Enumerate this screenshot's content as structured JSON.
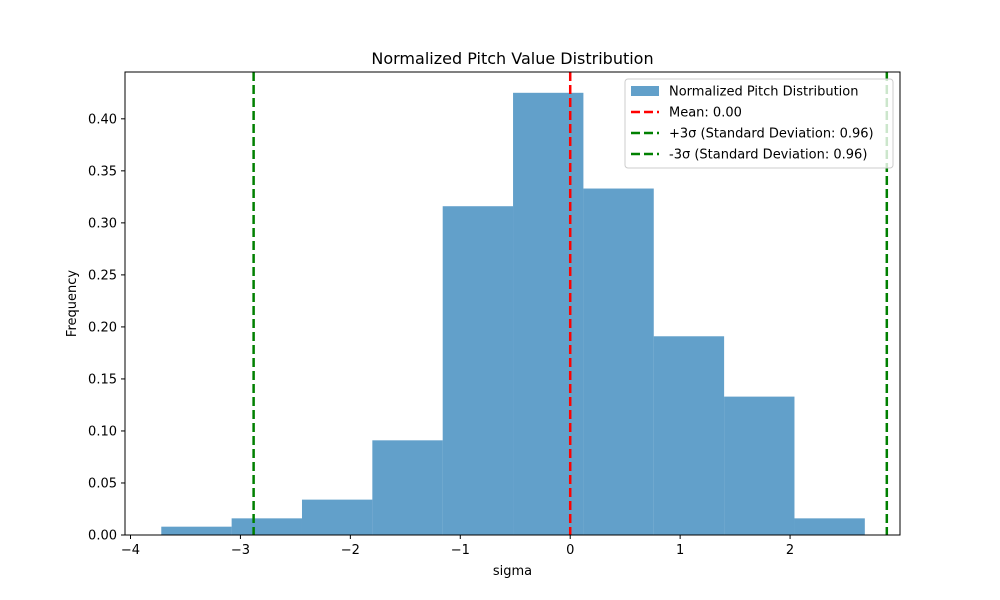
{
  "chart_data": {
    "type": "bar",
    "title": "Normalized Pitch Value Distribution",
    "xlabel": "sigma",
    "ylabel": "Frequency",
    "xlim": [
      -4.05,
      3.0
    ],
    "ylim": [
      0.0,
      0.445
    ],
    "xticks": [
      -4,
      -3,
      -2,
      -1,
      0,
      1,
      2
    ],
    "xtick_labels": [
      "−4",
      "−3",
      "−2",
      "−1",
      "0",
      "1",
      "2"
    ],
    "yticks": [
      0.0,
      0.05,
      0.1,
      0.15,
      0.2,
      0.25,
      0.3,
      0.35,
      0.4
    ],
    "ytick_labels": [
      "0.00",
      "0.05",
      "0.10",
      "0.15",
      "0.20",
      "0.25",
      "0.30",
      "0.35",
      "0.40"
    ],
    "bins": [
      {
        "start": -3.72,
        "end": -3.08,
        "value": 0.008
      },
      {
        "start": -3.08,
        "end": -2.44,
        "value": 0.016
      },
      {
        "start": -2.44,
        "end": -1.8,
        "value": 0.034
      },
      {
        "start": -1.8,
        "end": -1.16,
        "value": 0.091
      },
      {
        "start": -1.16,
        "end": -0.52,
        "value": 0.316
      },
      {
        "start": -0.52,
        "end": 0.12,
        "value": 0.425
      },
      {
        "start": 0.12,
        "end": 0.76,
        "value": 0.333
      },
      {
        "start": 0.76,
        "end": 1.4,
        "value": 0.191
      },
      {
        "start": 1.4,
        "end": 2.04,
        "value": 0.133
      },
      {
        "start": 2.04,
        "end": 2.68,
        "value": 0.016
      }
    ],
    "bar_color": "#1f77b4",
    "bar_opacity": 0.7,
    "vlines": [
      {
        "x": 0.0,
        "color": "#ff0000"
      },
      {
        "x": 2.88,
        "color": "#008000"
      },
      {
        "x": -2.88,
        "color": "#008000"
      }
    ],
    "legend": {
      "placement": "top-right",
      "entries": [
        {
          "label": "Normalized Pitch Distribution",
          "kind": "patch",
          "color": "#1f77b4"
        },
        {
          "label": "Mean: 0.00",
          "kind": "dashed-line",
          "color": "#ff0000"
        },
        {
          "label": "+3σ (Standard Deviation: 0.96)",
          "kind": "dashed-line",
          "color": "#008000"
        },
        {
          "label": "-3σ (Standard Deviation: 0.96)",
          "kind": "dashed-line",
          "color": "#008000"
        }
      ]
    },
    "grid": false
  }
}
